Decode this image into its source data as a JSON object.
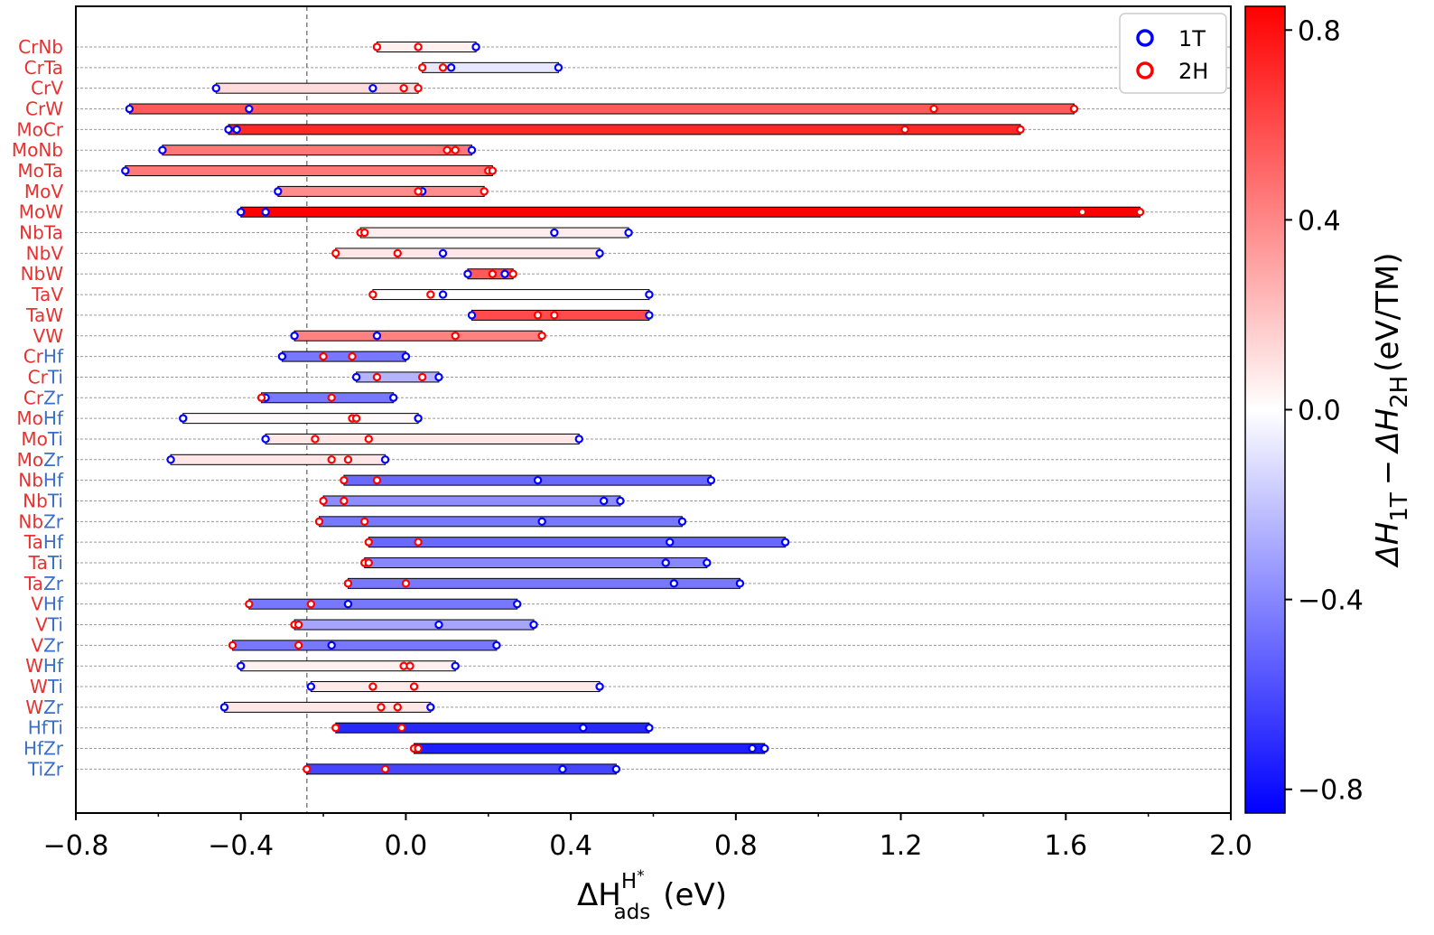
{
  "chart_data": {
    "type": "range-dot",
    "xlabel": "ΔH ads (eV)",
    "xlabel_parts": {
      "main": "ΔH",
      "sub": "ads",
      "sup": "H",
      "sup_star": "*",
      "unit": "(eV)"
    },
    "xlim": [
      -0.8,
      2.0
    ],
    "xticks": [
      -0.8,
      -0.4,
      0.0,
      0.4,
      0.8,
      1.2,
      1.6,
      2.0
    ],
    "xtick_labels": [
      "−0.8",
      "−0.4",
      "0.0",
      "0.4",
      "0.8",
      "1.2",
      "1.6",
      "2.0"
    ],
    "reference_line_x": -0.24,
    "colorbar": {
      "label": "ΔH 1T − ΔH 2H (eV/TM)",
      "label_parts": {
        "a": "ΔH",
        "asub": "1T",
        "minus": "−",
        "b": "ΔH",
        "bsub": "2H",
        "unit": "(eV/TM)"
      },
      "range": [
        -0.85,
        0.85
      ],
      "ticks": [
        0.8,
        0.4,
        0.0,
        -0.4,
        -0.8
      ],
      "tick_labels": [
        "0.8",
        "0.4",
        "0.0",
        "−0.4",
        "−0.8"
      ],
      "low_color": "#0000ff",
      "mid_color": "#ffffff",
      "high_color": "#ff0000"
    },
    "legend": {
      "placement": "top-right",
      "entries": [
        {
          "label": "1T",
          "color": "#0000ff"
        },
        {
          "label": "2H",
          "color": "#ff0000"
        }
      ]
    },
    "series": [
      {
        "name": "1T",
        "color": "#0000ff"
      },
      {
        "name": "2H",
        "color": "#ff0000"
      }
    ],
    "label_colors": {
      "red": "#e8312f",
      "blue": "#3a6ec7"
    },
    "rows": [
      {
        "a": "Cr",
        "b": "Nb",
        "ca": "red",
        "cb": "red",
        "color_value": 0.05,
        "t": [
          0.17
        ],
        "h": [
          -0.07,
          0.03
        ]
      },
      {
        "a": "Cr",
        "b": "Ta",
        "ca": "red",
        "cb": "red",
        "color_value": -0.08,
        "t": [
          0.11,
          0.37
        ],
        "h": [
          0.04,
          0.09
        ]
      },
      {
        "a": "Cr",
        "b": "V",
        "ca": "red",
        "cb": "red",
        "color_value": 0.12,
        "t": [
          -0.46,
          -0.08
        ],
        "h": [
          -0.005,
          0.03
        ]
      },
      {
        "a": "Cr",
        "b": "W",
        "ca": "red",
        "cb": "red",
        "color_value": 0.55,
        "t": [
          -0.67,
          -0.38
        ],
        "h": [
          1.28,
          1.62
        ]
      },
      {
        "a": "Mo",
        "b": "Cr",
        "ca": "red",
        "cb": "red",
        "color_value": 0.72,
        "t": [
          -0.43,
          -0.41
        ],
        "h": [
          1.21,
          1.49
        ]
      },
      {
        "a": "Mo",
        "b": "Nb",
        "ca": "red",
        "cb": "red",
        "color_value": 0.45,
        "t": [
          -0.59,
          0.16
        ],
        "h": [
          0.1,
          0.12
        ]
      },
      {
        "a": "Mo",
        "b": "Ta",
        "ca": "red",
        "cb": "red",
        "color_value": 0.45,
        "t": [
          -0.68
        ],
        "h": [
          0.2,
          0.21
        ]
      },
      {
        "a": "Mo",
        "b": "V",
        "ca": "red",
        "cb": "red",
        "color_value": 0.38,
        "t": [
          -0.31,
          0.04
        ],
        "h": [
          0.03,
          0.19
        ]
      },
      {
        "a": "Mo",
        "b": "W",
        "ca": "red",
        "cb": "red",
        "color_value": 0.88,
        "t": [
          -0.4,
          -0.34
        ],
        "h": [
          1.64,
          1.78
        ]
      },
      {
        "a": "Nb",
        "b": "Ta",
        "ca": "red",
        "cb": "red",
        "color_value": 0.06,
        "t": [
          0.36,
          0.54
        ],
        "h": [
          -0.11,
          -0.1
        ]
      },
      {
        "a": "Nb",
        "b": "V",
        "ca": "red",
        "cb": "red",
        "color_value": 0.08,
        "t": [
          0.09,
          0.47
        ],
        "h": [
          -0.17,
          -0.02
        ]
      },
      {
        "a": "Nb",
        "b": "W",
        "ca": "red",
        "cb": "red",
        "color_value": 0.55,
        "t": [
          0.15,
          0.24
        ],
        "h": [
          0.21,
          0.26
        ]
      },
      {
        "a": "Ta",
        "b": "V",
        "ca": "red",
        "cb": "red",
        "color_value": 0.0,
        "t": [
          0.09,
          0.59
        ],
        "h": [
          -0.08,
          0.06
        ]
      },
      {
        "a": "Ta",
        "b": "W",
        "ca": "red",
        "cb": "red",
        "color_value": 0.6,
        "t": [
          0.16,
          0.59
        ],
        "h": [
          0.32,
          0.36
        ]
      },
      {
        "a": "V",
        "b": "W",
        "ca": "red",
        "cb": "red",
        "color_value": 0.42,
        "t": [
          -0.27,
          -0.07
        ],
        "h": [
          0.12,
          0.33
        ]
      },
      {
        "a": "Cr",
        "b": "Hf",
        "ca": "red",
        "cb": "blue",
        "color_value": -0.45,
        "t": [
          -0.3,
          0.0
        ],
        "h": [
          -0.2,
          -0.13
        ]
      },
      {
        "a": "Cr",
        "b": "Ti",
        "ca": "red",
        "cb": "blue",
        "color_value": -0.25,
        "t": [
          -0.12,
          0.08
        ],
        "h": [
          -0.07,
          0.04
        ]
      },
      {
        "a": "Cr",
        "b": "Zr",
        "ca": "red",
        "cb": "blue",
        "color_value": -0.45,
        "t": [
          -0.34,
          -0.03
        ],
        "h": [
          -0.35,
          -0.18
        ]
      },
      {
        "a": "Mo",
        "b": "Hf",
        "ca": "red",
        "cb": "blue",
        "color_value": 0.02,
        "t": [
          -0.54,
          0.03
        ],
        "h": [
          -0.13,
          -0.12
        ]
      },
      {
        "a": "Mo",
        "b": "Ti",
        "ca": "red",
        "cb": "blue",
        "color_value": 0.08,
        "t": [
          -0.34,
          0.42
        ],
        "h": [
          -0.22,
          -0.09
        ]
      },
      {
        "a": "Mo",
        "b": "Zr",
        "ca": "red",
        "cb": "blue",
        "color_value": 0.08,
        "t": [
          -0.57,
          -0.05
        ],
        "h": [
          -0.18,
          -0.14
        ]
      },
      {
        "a": "Nb",
        "b": "Hf",
        "ca": "red",
        "cb": "blue",
        "color_value": -0.5,
        "t": [
          0.32,
          0.74
        ],
        "h": [
          -0.15,
          -0.07
        ]
      },
      {
        "a": "Nb",
        "b": "Ti",
        "ca": "red",
        "cb": "blue",
        "color_value": -0.38,
        "t": [
          0.48,
          0.52
        ],
        "h": [
          -0.2,
          -0.15
        ]
      },
      {
        "a": "Nb",
        "b": "Zr",
        "ca": "red",
        "cb": "blue",
        "color_value": -0.45,
        "t": [
          0.33,
          0.67
        ],
        "h": [
          -0.21,
          -0.1
        ]
      },
      {
        "a": "Ta",
        "b": "Hf",
        "ca": "red",
        "cb": "blue",
        "color_value": -0.5,
        "t": [
          0.64,
          0.92
        ],
        "h": [
          -0.09,
          0.03
        ]
      },
      {
        "a": "Ta",
        "b": "Ti",
        "ca": "red",
        "cb": "blue",
        "color_value": -0.4,
        "t": [
          0.63,
          0.73
        ],
        "h": [
          -0.1,
          -0.09
        ]
      },
      {
        "a": "Ta",
        "b": "Zr",
        "ca": "red",
        "cb": "blue",
        "color_value": -0.45,
        "t": [
          0.65,
          0.81
        ],
        "h": [
          -0.14,
          0.0
        ]
      },
      {
        "a": "V",
        "b": "Hf",
        "ca": "red",
        "cb": "blue",
        "color_value": -0.45,
        "t": [
          -0.14,
          0.27
        ],
        "h": [
          -0.38,
          -0.23
        ]
      },
      {
        "a": "V",
        "b": "Ti",
        "ca": "red",
        "cb": "blue",
        "color_value": -0.3,
        "t": [
          0.08,
          0.31
        ],
        "h": [
          -0.27,
          -0.26
        ]
      },
      {
        "a": "V",
        "b": "Zr",
        "ca": "red",
        "cb": "blue",
        "color_value": -0.45,
        "t": [
          -0.18,
          0.22
        ],
        "h": [
          -0.42,
          -0.26
        ]
      },
      {
        "a": "W",
        "b": "Hf",
        "ca": "red",
        "cb": "blue",
        "color_value": 0.05,
        "t": [
          -0.4,
          0.12
        ],
        "h": [
          -0.005,
          0.01
        ]
      },
      {
        "a": "W",
        "b": "Ti",
        "ca": "red",
        "cb": "blue",
        "color_value": 0.07,
        "t": [
          -0.23,
          0.47
        ],
        "h": [
          -0.08,
          0.02
        ]
      },
      {
        "a": "W",
        "b": "Zr",
        "ca": "red",
        "cb": "blue",
        "color_value": 0.08,
        "t": [
          -0.44,
          0.06
        ],
        "h": [
          -0.06,
          -0.02
        ]
      },
      {
        "a": "Hf",
        "b": "Ti",
        "ca": "blue",
        "cb": "blue",
        "color_value": -0.72,
        "t": [
          0.43,
          0.59
        ],
        "h": [
          -0.17,
          -0.01
        ]
      },
      {
        "a": "Hf",
        "b": "Zr",
        "ca": "blue",
        "cb": "blue",
        "color_value": -0.75,
        "t": [
          0.84,
          0.87
        ],
        "h": [
          0.02,
          0.03
        ]
      },
      {
        "a": "Ti",
        "b": "Zr",
        "ca": "blue",
        "cb": "blue",
        "color_value": -0.62,
        "t": [
          0.38,
          0.51
        ],
        "h": [
          -0.24,
          -0.05
        ]
      }
    ]
  }
}
